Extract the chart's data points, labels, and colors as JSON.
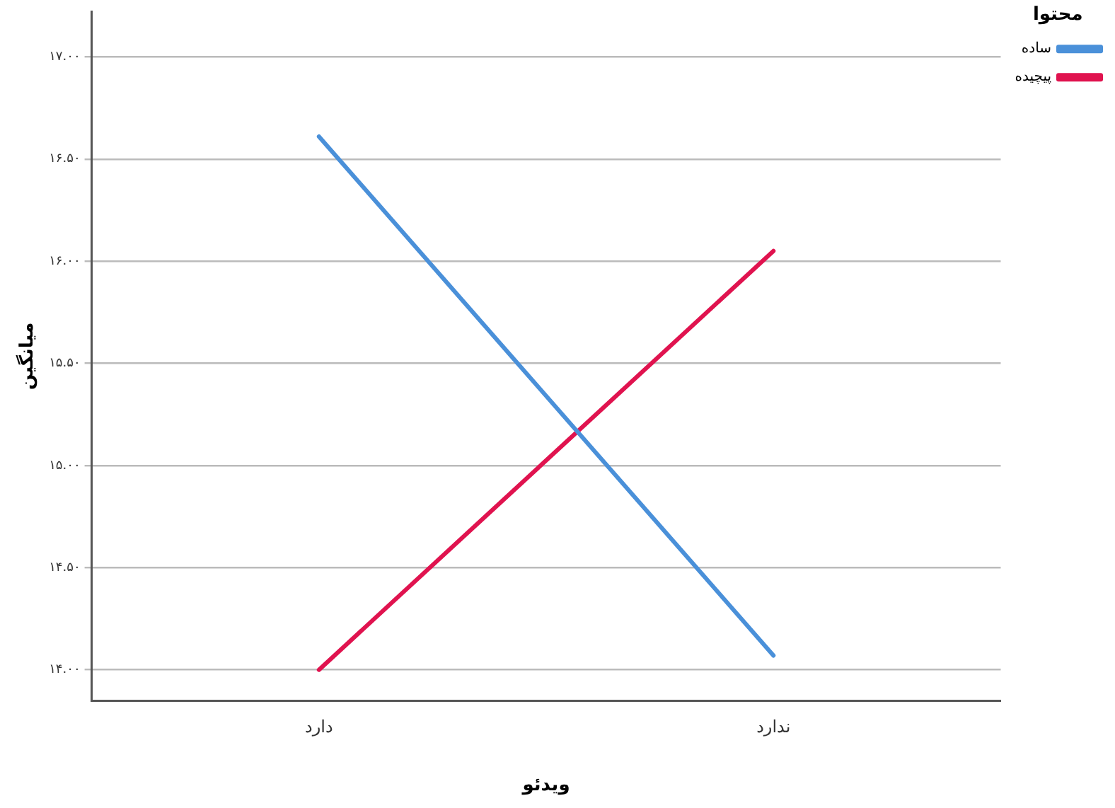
{
  "chart_data": {
    "type": "line",
    "xlabel": "ویدئو",
    "ylabel": "میانگین",
    "legend_title": "محتوا",
    "categories": [
      "دارد",
      "ندارد"
    ],
    "series": [
      {
        "name": "ساده",
        "color": "#4a90d9",
        "values": [
          16.61,
          14.07
        ]
      },
      {
        "name": "پیچیده",
        "color": "#e0134f",
        "values": [
          14.0,
          16.05
        ]
      }
    ],
    "ylim": [
      13.85,
      17.22
    ],
    "yticks": [
      {
        "value": 14,
        "label": "۱۴.۰۰"
      },
      {
        "value": 14.5,
        "label": "۱۴.۵۰"
      },
      {
        "value": 15,
        "label": "۱۵.۰۰"
      },
      {
        "value": 15.5,
        "label": "۱۵.۵۰"
      },
      {
        "value": 16,
        "label": "۱۶.۰۰"
      },
      {
        "value": 16.5,
        "label": "۱۶.۵۰"
      },
      {
        "value": 17,
        "label": "۱۷.۰۰"
      }
    ],
    "grid": "y",
    "legend": "top right",
    "marker": "none",
    "line_style": "solid"
  }
}
